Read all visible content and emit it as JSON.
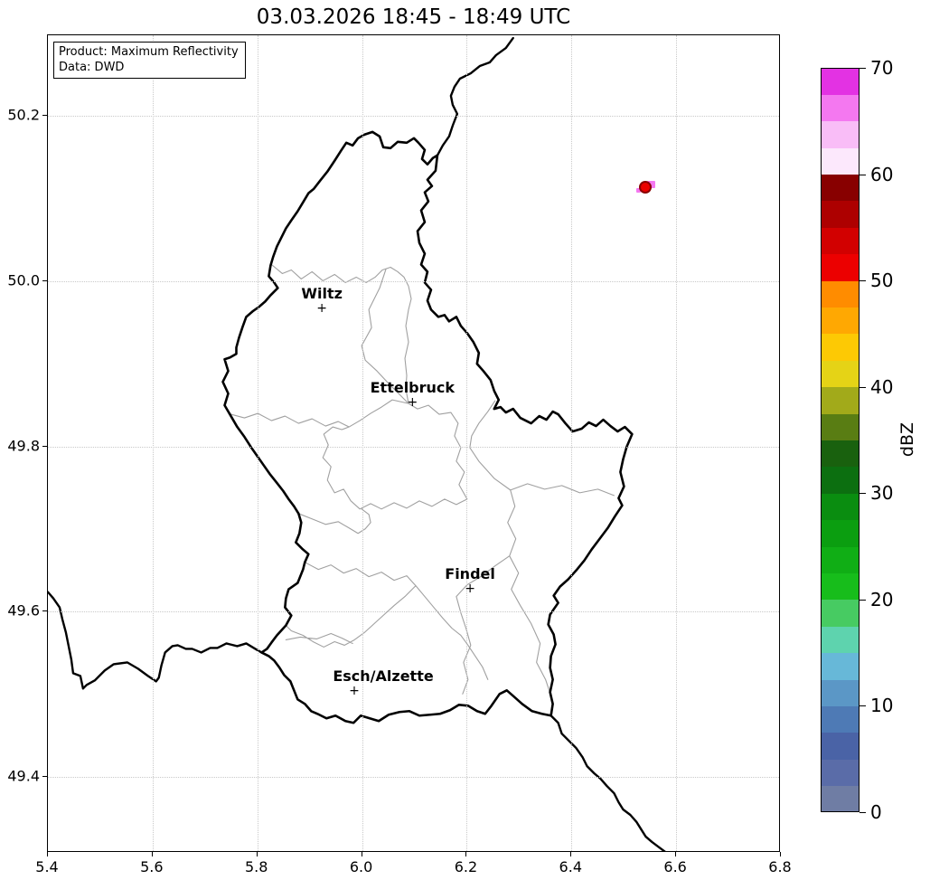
{
  "title": "03.03.2026 18:45 - 18:49 UTC",
  "info_box": {
    "product_line": "Product: Maximum Reflectivity",
    "data_line": "Data: DWD"
  },
  "axes": {
    "xlim": [
      5.4,
      6.8
    ],
    "ylim": [
      49.308,
      50.298
    ],
    "x_ticks": [
      5.4,
      5.6,
      5.8,
      6.0,
      6.2,
      6.4,
      6.6,
      6.8
    ],
    "x_tick_labels": [
      "5.4",
      "5.6",
      "5.8",
      "6.0",
      "6.2",
      "6.4",
      "6.6",
      "6.8"
    ],
    "y_ticks": [
      50.2,
      50.0,
      49.8,
      49.6,
      49.4
    ],
    "y_tick_labels": [
      "50.2",
      "50.0",
      "49.8",
      "49.6",
      "49.4"
    ],
    "grid": "dotted"
  },
  "colorbar": {
    "label": "dBZ",
    "min": 0,
    "max": 70,
    "tick_values": [
      0,
      10,
      20,
      30,
      40,
      50,
      60,
      70
    ],
    "segment_step": 2.5,
    "segment_colors_bottom_to_top": [
      "#6f7da4",
      "#5a6ca8",
      "#4a63a6",
      "#4e7ab5",
      "#5b97c6",
      "#67b8d8",
      "#5ed3ae",
      "#47cb62",
      "#17bd1b",
      "#10ae15",
      "#0b9e10",
      "#0a8d10",
      "#0c6f10",
      "#19610e",
      "#597d13",
      "#a2aa1a",
      "#e5d316",
      "#fdc904",
      "#ffa802",
      "#ff8c00",
      "#ec0000",
      "#d20000",
      "#ad0000",
      "#880000",
      "#fce8fc",
      "#f9bdf7",
      "#f478f0",
      "#e332e3"
    ]
  },
  "stations": [
    {
      "name": "Wiltz",
      "lon": 5.925,
      "lat": 49.966,
      "label_dx": 0,
      "marker": "+"
    },
    {
      "name": "Ettelbruck",
      "lon": 6.098,
      "lat": 49.852,
      "label_dx": 0,
      "marker": "+"
    },
    {
      "name": "Findel",
      "lon": 6.208,
      "lat": 49.627,
      "label_dx": 0,
      "marker": "+"
    },
    {
      "name": "Esch/Alzette",
      "lon": 5.987,
      "lat": 49.503,
      "label_dx": 32,
      "marker": "+"
    }
  ],
  "chart_data": {
    "type": "radar-reflectivity-map",
    "product": "Maximum Reflectivity",
    "data_source": "DWD",
    "time_window_utc": "03.03.2026 18:45 - 18:49",
    "units": "dBZ",
    "region": "Luxembourg and surroundings",
    "echoes": [
      {
        "lon": 6.546,
        "lat": 50.112,
        "core_dbz_approx": 52,
        "ring_dbz_approx": 58,
        "fringe_dbz_approx": 66
      }
    ]
  }
}
